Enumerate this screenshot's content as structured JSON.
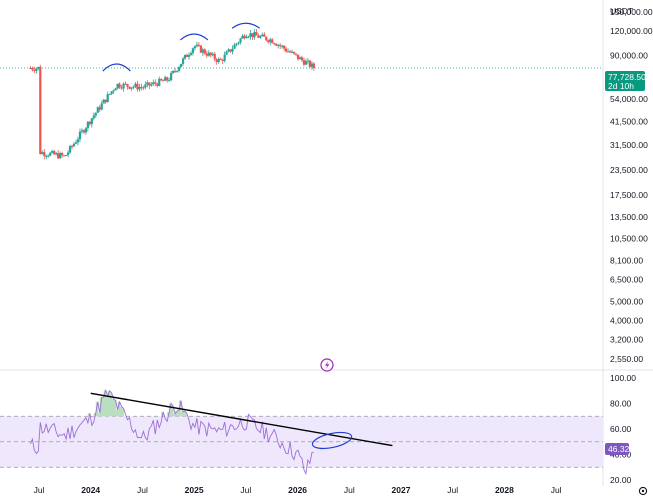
{
  "currency": "USDT",
  "colors": {
    "up": "#26a69a",
    "down": "#ef5350",
    "rsi_line": "#9c6fd6",
    "rsi_band": "#efe7fb",
    "price_label": "#089981",
    "rsi_label": "#7e57c2",
    "annotation": "#1f3fd6",
    "trendline": "#000000"
  },
  "price_label": {
    "price": "77,728.50",
    "countdown": "2d 10h"
  },
  "rsi_label": "46.32",
  "alert_icon": "lightning-icon",
  "settings_icon": "gear-icon",
  "chart_data": [
    {
      "type": "candlestick",
      "title": "",
      "scale": "log",
      "y_tick_labels": [
        "150,000.00",
        "120,000.00",
        "90,000.00",
        "54,000.00",
        "41,500.00",
        "31,500.00",
        "23,500.00",
        "17,500.00",
        "13,500.00",
        "10,500.00",
        "8,100.00",
        "6,500.00",
        "5,000.00",
        "4,000.00",
        "3,200.00",
        "2,550.00"
      ],
      "y_ticks": [
        150000,
        120000,
        90000,
        54000,
        41500,
        31500,
        23500,
        17500,
        13500,
        10500,
        8100,
        6500,
        5000,
        4000,
        3200,
        2550
      ],
      "ylim": [
        2300,
        170000
      ],
      "last_price": 77728.5,
      "series": [
        {
          "name": "",
          "x": [
            "2023-07",
            "2023-10",
            "2024-01",
            "2024-04",
            "2024-07",
            "2024-10",
            "2025-01",
            "2025-04",
            "2025-07",
            "2025-10",
            "2026-01",
            "2026-03"
          ],
          "values": [
            29000,
            27500,
            42500,
            64000,
            62000,
            68000,
            101000,
            84000,
            117000,
            108000,
            88000,
            77728.5
          ]
        }
      ]
    },
    {
      "type": "line",
      "title": "",
      "y_tick_labels": [
        "100.00",
        "80.00",
        "60.00",
        "40.00",
        "20.00"
      ],
      "y_ticks": [
        100,
        80,
        60,
        40,
        20
      ],
      "ylim": [
        20,
        100
      ],
      "band": [
        30,
        70
      ],
      "last_value": 46.32,
      "series": [
        {
          "name": "",
          "x": [
            "2023-07",
            "2023-10",
            "2024-01",
            "2024-03",
            "2024-07",
            "2024-11",
            "2025-01",
            "2025-04",
            "2025-07",
            "2025-10",
            "2026-01",
            "2026-02",
            "2026-03"
          ],
          "values": [
            62,
            55,
            68,
            88,
            52,
            80,
            62,
            58,
            66,
            55,
            40,
            26,
            46.32
          ]
        }
      ]
    }
  ],
  "x_axis": [
    {
      "label": "Jul",
      "bold": false
    },
    {
      "label": "2024",
      "bold": true
    },
    {
      "label": "Jul",
      "bold": false
    },
    {
      "label": "2025",
      "bold": true
    },
    {
      "label": "Jul",
      "bold": false
    },
    {
      "label": "2026",
      "bold": true
    },
    {
      "label": "Jul",
      "bold": false
    },
    {
      "label": "2027",
      "bold": true
    },
    {
      "label": "Jul",
      "bold": false
    },
    {
      "label": "2028",
      "bold": true
    },
    {
      "label": "Jul",
      "bold": false
    }
  ]
}
